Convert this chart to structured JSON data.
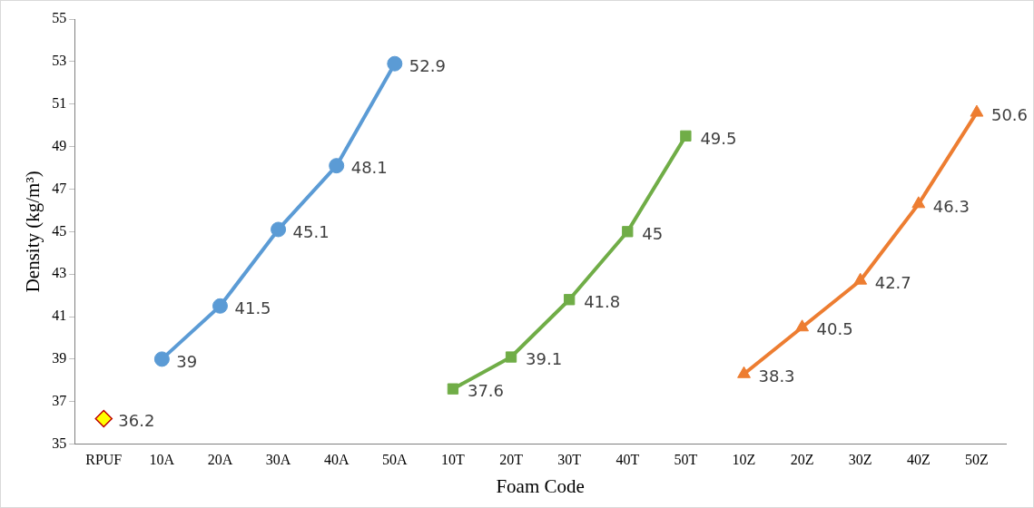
{
  "chart_data": {
    "type": "line",
    "xlabel": "Foam Code",
    "ylabel": "Density (kg/m³)",
    "categories": [
      "RPUF",
      "10A",
      "20A",
      "30A",
      "40A",
      "50A",
      "10T",
      "20T",
      "30T",
      "40T",
      "50T",
      "10Z",
      "20Z",
      "30Z",
      "40Z",
      "50Z"
    ],
    "series": [
      {
        "type": "scatter",
        "marker": "diamond",
        "color": "#ffff00",
        "values": [
          36.2,
          null,
          null,
          null,
          null,
          null,
          null,
          null,
          null,
          null,
          null,
          null,
          null,
          null,
          null,
          null
        ]
      },
      {
        "type": "line",
        "marker": "circle",
        "color": "#5b9bd5",
        "values": [
          null,
          39,
          41.5,
          45.1,
          48.1,
          52.9,
          null,
          null,
          null,
          null,
          null,
          null,
          null,
          null,
          null,
          null
        ]
      },
      {
        "type": "line",
        "marker": "square",
        "color": "#70ad47",
        "values": [
          null,
          null,
          null,
          null,
          null,
          null,
          37.6,
          39.1,
          41.8,
          45,
          49.5,
          null,
          null,
          null,
          null,
          null
        ]
      },
      {
        "type": "line",
        "marker": "triangle",
        "color": "#ed7d31",
        "values": [
          null,
          null,
          null,
          null,
          null,
          null,
          null,
          null,
          null,
          null,
          null,
          38.3,
          40.5,
          42.7,
          46.3,
          50.6
        ]
      }
    ],
    "ylim": [
      35,
      55
    ],
    "yticks": [
      35,
      37,
      39,
      41,
      43,
      45,
      47,
      49,
      51,
      53,
      55
    ],
    "grid": false,
    "legend": false,
    "data_labels": true
  }
}
